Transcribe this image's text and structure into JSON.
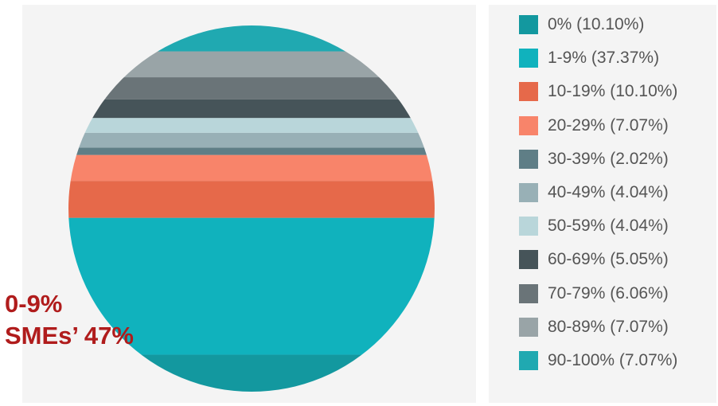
{
  "chart_data": {
    "type": "pie",
    "categories": [
      "0%",
      "1-9%",
      "10-19%",
      "20-29%",
      "30-39%",
      "40-49%",
      "50-59%",
      "60-69%",
      "70-79%",
      "80-89%",
      "90-100%"
    ],
    "values": [
      10.1,
      37.37,
      10.1,
      7.07,
      2.02,
      4.04,
      4.04,
      5.05,
      6.06,
      7.07,
      7.07
    ],
    "legend_labels": [
      "0% (10.10%)",
      "1-9% (37.37%)",
      "10-19% (10.10%)",
      "20-29% (7.07%)",
      "30-39% (2.02%)",
      "40-49% (4.04%)",
      "50-59% (4.04%)",
      "60-69% (5.05%)",
      "70-79% (6.06%)",
      "80-89% (7.07%)",
      "90-100% (7.07%)"
    ],
    "colors": [
      "#13989f",
      "#10b2bd",
      "#e6694a",
      "#f8846a",
      "#5f7e86",
      "#98b0b6",
      "#b9d6da",
      "#465459",
      "#6a7478",
      "#99a4a7",
      "#20a9b1"
    ],
    "legend_placement": "right",
    "annotation_lines": [
      "0-9%",
      "SMEs’ 47%"
    ]
  }
}
